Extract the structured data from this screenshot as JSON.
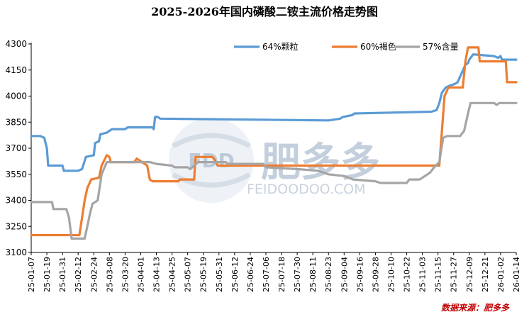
{
  "chart_data": {
    "type": "line",
    "title": "2025-2026年国内磷酸二铵主流价格走势图",
    "ylim": [
      3100,
      4300
    ],
    "yticks": [
      "3100",
      "3250",
      "3400",
      "3550",
      "3700",
      "3850",
      "4000",
      "4150",
      "4300"
    ],
    "xtick_labels": [
      "25-01-07",
      "25-01-19",
      "25-01-31",
      "25-02-12",
      "25-02-24",
      "25-03-08",
      "25-03-20",
      "25-04-01",
      "25-04-13",
      "25-04-25",
      "25-05-07",
      "25-05-19",
      "25-05-31",
      "25-06-12",
      "25-06-24",
      "25-07-06",
      "25-07-18",
      "25-07-30",
      "25-08-11",
      "25-08-23",
      "25-09-04",
      "25-09-16",
      "25-09-28",
      "25-10-10",
      "25-10-22",
      "25-11-03",
      "25-11-15",
      "25-11-27",
      "25-12-09",
      "25-12-21",
      "26-01-02",
      "26-01-14"
    ],
    "grid": false,
    "legend_position": "top-right",
    "x_start": "2025-01-07",
    "x_end": "2026-01-14",
    "series": [
      {
        "name": "64%颗粒",
        "color": "#5b9bd5",
        "points": [
          [
            "2025-01-07",
            3770
          ],
          [
            "2025-01-14",
            3770
          ],
          [
            "2025-01-17",
            3760
          ],
          [
            "2025-01-19",
            3700
          ],
          [
            "2025-01-20",
            3600
          ],
          [
            "2025-01-31",
            3600
          ],
          [
            "2025-02-01",
            3570
          ],
          [
            "2025-02-12",
            3570
          ],
          [
            "2025-02-15",
            3580
          ],
          [
            "2025-02-18",
            3650
          ],
          [
            "2025-02-24",
            3660
          ],
          [
            "2025-02-25",
            3730
          ],
          [
            "2025-02-28",
            3740
          ],
          [
            "2025-03-01",
            3780
          ],
          [
            "2025-03-06",
            3790
          ],
          [
            "2025-03-08",
            3800
          ],
          [
            "2025-03-10",
            3810
          ],
          [
            "2025-03-20",
            3810
          ],
          [
            "2025-03-22",
            3820
          ],
          [
            "2025-04-10",
            3820
          ],
          [
            "2025-04-11",
            3810
          ],
          [
            "2025-04-12",
            3880
          ],
          [
            "2025-04-14",
            3880
          ],
          [
            "2025-04-16",
            3870
          ],
          [
            "2025-08-23",
            3860
          ],
          [
            "2025-09-01",
            3870
          ],
          [
            "2025-09-03",
            3880
          ],
          [
            "2025-09-10",
            3890
          ],
          [
            "2025-09-12",
            3900
          ],
          [
            "2025-11-10",
            3910
          ],
          [
            "2025-11-14",
            3920
          ],
          [
            "2025-11-16",
            3960
          ],
          [
            "2025-11-18",
            4020
          ],
          [
            "2025-11-21",
            4050
          ],
          [
            "2025-11-24",
            4060
          ],
          [
            "2025-11-28",
            4070
          ],
          [
            "2025-11-30",
            4080
          ],
          [
            "2025-12-03",
            4130
          ],
          [
            "2025-12-06",
            4180
          ],
          [
            "2025-12-08",
            4190
          ],
          [
            "2025-12-09",
            4210
          ],
          [
            "2025-12-12",
            4240
          ],
          [
            "2025-12-28",
            4230
          ],
          [
            "2025-12-31",
            4220
          ],
          [
            "2026-01-02",
            4230
          ],
          [
            "2026-01-03",
            4210
          ],
          [
            "2026-01-14",
            4210
          ]
        ]
      },
      {
        "name": "60%褐色",
        "color": "#ed7d31",
        "points": [
          [
            "2025-01-07",
            3200
          ],
          [
            "2025-02-13",
            3200
          ],
          [
            "2025-02-15",
            3300
          ],
          [
            "2025-02-17",
            3400
          ],
          [
            "2025-02-19",
            3470
          ],
          [
            "2025-02-22",
            3520
          ],
          [
            "2025-02-28",
            3530
          ],
          [
            "2025-03-02",
            3600
          ],
          [
            "2025-03-06",
            3660
          ],
          [
            "2025-03-08",
            3650
          ],
          [
            "2025-03-09",
            3620
          ],
          [
            "2025-03-27",
            3620
          ],
          [
            "2025-03-29",
            3640
          ],
          [
            "2025-03-31",
            3630
          ],
          [
            "2025-04-02",
            3620
          ],
          [
            "2025-04-06",
            3600
          ],
          [
            "2025-04-08",
            3520
          ],
          [
            "2025-04-10",
            3510
          ],
          [
            "2025-04-30",
            3510
          ],
          [
            "2025-05-01",
            3520
          ],
          [
            "2025-05-12",
            3520
          ],
          [
            "2025-05-13",
            3650
          ],
          [
            "2025-05-26",
            3650
          ],
          [
            "2025-05-28",
            3630
          ],
          [
            "2025-05-30",
            3600
          ],
          [
            "2025-11-16",
            3600
          ],
          [
            "2025-11-18",
            3800
          ],
          [
            "2025-11-20",
            4000
          ],
          [
            "2025-11-23",
            4050
          ],
          [
            "2025-12-04",
            4050
          ],
          [
            "2025-12-06",
            4200
          ],
          [
            "2025-12-08",
            4280
          ],
          [
            "2025-12-16",
            4280
          ],
          [
            "2025-12-17",
            4200
          ],
          [
            "2026-01-06",
            4200
          ],
          [
            "2026-01-07",
            4080
          ],
          [
            "2026-01-14",
            4080
          ]
        ]
      },
      {
        "name": "57%含量",
        "color": "#a5a5a5",
        "points": [
          [
            "2025-01-07",
            3390
          ],
          [
            "2025-01-23",
            3390
          ],
          [
            "2025-01-24",
            3350
          ],
          [
            "2025-02-03",
            3350
          ],
          [
            "2025-02-05",
            3300
          ],
          [
            "2025-02-07",
            3180
          ],
          [
            "2025-02-17",
            3180
          ],
          [
            "2025-02-19",
            3250
          ],
          [
            "2025-02-21",
            3320
          ],
          [
            "2025-02-23",
            3380
          ],
          [
            "2025-02-27",
            3400
          ],
          [
            "2025-03-02",
            3550
          ],
          [
            "2025-03-06",
            3620
          ],
          [
            "2025-04-08",
            3620
          ],
          [
            "2025-04-13",
            3610
          ],
          [
            "2025-04-25",
            3600
          ],
          [
            "2025-04-27",
            3590
          ],
          [
            "2025-05-07",
            3590
          ],
          [
            "2025-05-09",
            3580
          ],
          [
            "2025-05-15",
            3620
          ],
          [
            "2025-06-05",
            3620
          ],
          [
            "2025-06-07",
            3610
          ],
          [
            "2025-07-04",
            3610
          ],
          [
            "2025-07-06",
            3590
          ],
          [
            "2025-07-30",
            3580
          ],
          [
            "2025-08-15",
            3570
          ],
          [
            "2025-08-23",
            3550
          ],
          [
            "2025-09-04",
            3540
          ],
          [
            "2025-09-11",
            3520
          ],
          [
            "2025-09-28",
            3510
          ],
          [
            "2025-10-02",
            3500
          ],
          [
            "2025-10-22",
            3500
          ],
          [
            "2025-10-24",
            3520
          ],
          [
            "2025-11-01",
            3520
          ],
          [
            "2025-11-09",
            3560
          ],
          [
            "2025-11-12",
            3590
          ],
          [
            "2025-11-16",
            3620
          ],
          [
            "2025-11-19",
            3760
          ],
          [
            "2025-11-22",
            3770
          ],
          [
            "2025-12-02",
            3770
          ],
          [
            "2025-12-05",
            3800
          ],
          [
            "2025-12-08",
            3900
          ],
          [
            "2025-12-10",
            3960
          ],
          [
            "2025-12-28",
            3960
          ],
          [
            "2025-12-30",
            3950
          ],
          [
            "2026-01-01",
            3960
          ],
          [
            "2026-01-14",
            3960
          ]
        ]
      }
    ]
  },
  "watermark": {
    "brand_cn": "肥多多",
    "brand_en": "FEIDOODOO.COM",
    "logo_text": "FDD"
  },
  "source_note": "数据来源：肥多多"
}
